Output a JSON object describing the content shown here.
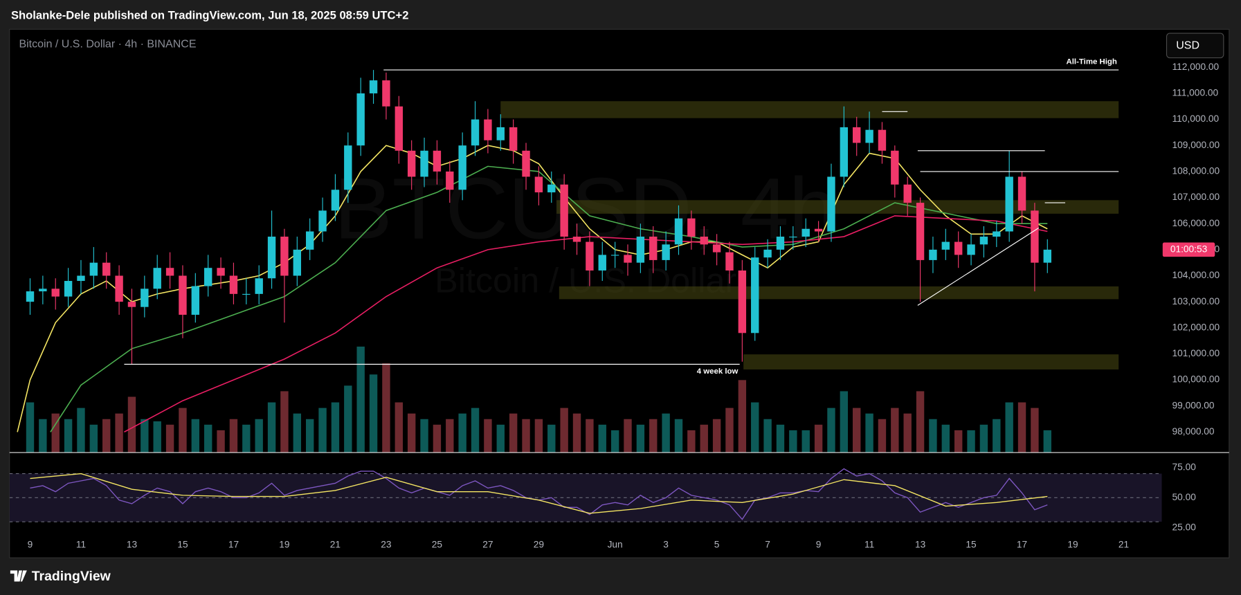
{
  "header": {
    "title": "Sholanke-Dele published on TradingView.com, Jun 18, 2025 08:59 UTC+2"
  },
  "footer": {
    "brand": "TradingView"
  },
  "chart_data": [
    {
      "type": "candlestick",
      "title": "Bitcoin / U.S. Dollar · 4h · BINANCE",
      "watermark": [
        "BTCUSD, 4h",
        "Bitcoin / U.S. Dollar"
      ],
      "currency": "USD",
      "countdown": "01:00:53",
      "xlim": [
        -0.81,
        44.5
      ],
      "ylim": [
        97210,
        113460
      ],
      "grid": false,
      "yticks": [
        {
          "value": 112000,
          "label": "112,000.00"
        },
        {
          "value": 111000,
          "label": "111,000.00"
        },
        {
          "value": 110000,
          "label": "110,000.00"
        },
        {
          "value": 109000,
          "label": "109,000.00"
        },
        {
          "value": 108000,
          "label": "108,000.00"
        },
        {
          "value": 107000,
          "label": "107,000.00"
        },
        {
          "value": 106000,
          "label": "106,000.00"
        },
        {
          "value": 105000,
          "label": "105,000.00"
        },
        {
          "value": 104000,
          "label": "104,000.00"
        },
        {
          "value": 103000,
          "label": "103,000.00"
        },
        {
          "value": 102000,
          "label": "102,000.00"
        },
        {
          "value": 101000,
          "label": "101,000.00"
        },
        {
          "value": 100000,
          "label": "100,000.00"
        },
        {
          "value": 99000,
          "label": "99,000.00"
        },
        {
          "value": 98000,
          "label": "98,000.00"
        }
      ],
      "up_color": "#22c3d3",
      "down_color": "#f0386b",
      "volume_colors": {
        "up": "#0d5a58",
        "down": "#6e2a30"
      },
      "volume_lim": [
        0,
        100
      ],
      "zone_color": "#4a4a12",
      "x": [
        0,
        0.5,
        1,
        1.5,
        2,
        2.5,
        3,
        3.5,
        4,
        4.5,
        5,
        5.5,
        6,
        6.5,
        7,
        7.5,
        8,
        8.5,
        9,
        9.5,
        10,
        10.5,
        11,
        11.5,
        12,
        12.5,
        13,
        13.5,
        14,
        14.5,
        15,
        15.5,
        16,
        16.5,
        17,
        17.5,
        18,
        18.5,
        19,
        19.5,
        20,
        20.5,
        21,
        21.5,
        22,
        22.5,
        23,
        23.5,
        24,
        24.5,
        25,
        25.5,
        26,
        26.5,
        27,
        27.5,
        28,
        28.5,
        29,
        29.5,
        30,
        30.5,
        31,
        31.5,
        32,
        32.5,
        33,
        33.5,
        34,
        34.5,
        35,
        35.5,
        36,
        36.5,
        37,
        37.5,
        38,
        38.5,
        39,
        39.5,
        40
      ],
      "open": [
        103000,
        103400,
        103500,
        103200,
        103800,
        104000,
        104500,
        104000,
        103000,
        102800,
        103500,
        104300,
        104000,
        102500,
        103600,
        104300,
        104000,
        103300,
        103300,
        103900,
        105500,
        104000,
        105000,
        105700,
        106500,
        107300,
        109000,
        111000,
        111500,
        110500,
        108800,
        107800,
        108800,
        108000,
        107300,
        109000,
        110000,
        109200,
        109700,
        108800,
        107800,
        107200,
        107500,
        105500,
        105300,
        104200,
        104800,
        104800,
        104500,
        105500,
        104600,
        105200,
        106200,
        105500,
        105200,
        104900,
        104200,
        101800,
        104700,
        105000,
        105500,
        105500,
        105800,
        105700,
        107800,
        109700,
        109100,
        109600,
        108800,
        107500,
        106800,
        104600,
        105000,
        105300,
        104800,
        105200,
        105500,
        105700,
        107800,
        106500,
        104500
      ],
      "high": [
        103900,
        104000,
        103900,
        104300,
        104600,
        105100,
        104900,
        104400,
        103500,
        104000,
        104800,
        104900,
        104400,
        104100,
        104800,
        104700,
        104500,
        103900,
        104400,
        106500,
        105800,
        105500,
        106200,
        107000,
        107900,
        109500,
        111600,
        111900,
        111800,
        110900,
        109200,
        109300,
        109200,
        108400,
        109500,
        110700,
        110400,
        110200,
        110000,
        109100,
        108200,
        108000,
        107900,
        106000,
        105700,
        105300,
        105300,
        105200,
        106000,
        105900,
        105700,
        106700,
        106500,
        105900,
        105600,
        105300,
        104600,
        105100,
        105400,
        105900,
        105900,
        106200,
        106100,
        108300,
        110500,
        110100,
        110300,
        109900,
        109000,
        107800,
        107000,
        105500,
        105800,
        105700,
        105600,
        105900,
        106100,
        108800,
        108000,
        106800,
        105400
      ],
      "low": [
        102500,
        102900,
        102700,
        102800,
        103300,
        103500,
        103500,
        102500,
        100600,
        102400,
        103100,
        103500,
        101600,
        102200,
        103200,
        103500,
        102900,
        102900,
        102900,
        103500,
        102200,
        103600,
        104600,
        105300,
        106100,
        106800,
        108600,
        110600,
        110000,
        108300,
        107300,
        107400,
        107500,
        106800,
        106900,
        108600,
        108700,
        108800,
        108300,
        107300,
        106700,
        106800,
        105000,
        104800,
        103600,
        103800,
        104300,
        104000,
        104100,
        104100,
        104200,
        104800,
        105000,
        104800,
        104400,
        103700,
        100700,
        101500,
        104300,
        104600,
        105000,
        105100,
        105300,
        105300,
        107400,
        108600,
        108700,
        108300,
        107000,
        106300,
        103000,
        104100,
        104600,
        104300,
        104400,
        104700,
        105100,
        105300,
        106000,
        103400,
        104100
      ],
      "close": [
        103400,
        103500,
        103200,
        103800,
        104000,
        104500,
        104000,
        103000,
        102800,
        103500,
        104300,
        104000,
        102500,
        103600,
        104300,
        104000,
        103300,
        103300,
        103900,
        105500,
        104000,
        105000,
        105700,
        106500,
        107300,
        109000,
        111000,
        111500,
        110500,
        108800,
        107800,
        108800,
        108000,
        107300,
        109000,
        110000,
        109200,
        109700,
        108800,
        107800,
        107200,
        107500,
        105500,
        105300,
        104200,
        104800,
        104800,
        104500,
        105500,
        104600,
        105200,
        106200,
        105500,
        105200,
        104900,
        104200,
        101800,
        104700,
        105000,
        105500,
        105500,
        105800,
        105700,
        107800,
        109700,
        109100,
        109600,
        108800,
        107500,
        106800,
        104600,
        105000,
        105300,
        104800,
        105200,
        105500,
        105700,
        107800,
        106500,
        104500,
        105000
      ],
      "volume": [
        45,
        30,
        35,
        30,
        40,
        25,
        30,
        35,
        50,
        30,
        28,
        25,
        40,
        30,
        25,
        20,
        30,
        25,
        30,
        45,
        55,
        35,
        30,
        40,
        45,
        60,
        95,
        70,
        80,
        45,
        35,
        30,
        25,
        30,
        35,
        40,
        30,
        25,
        35,
        30,
        30,
        25,
        40,
        35,
        30,
        25,
        20,
        30,
        25,
        30,
        35,
        30,
        20,
        25,
        30,
        40,
        65,
        45,
        30,
        25,
        20,
        20,
        25,
        40,
        55,
        40,
        35,
        30,
        40,
        35,
        55,
        30,
        25,
        20,
        20,
        25,
        30,
        45,
        45,
        40,
        20
      ],
      "series": [
        {
          "color": "#f5e663",
          "x": [
            -0.5,
            0,
            1,
            2,
            3,
            4,
            5,
            6,
            8,
            9,
            10,
            11,
            12,
            13,
            14,
            15,
            16,
            17,
            18,
            19,
            20,
            21,
            22,
            23,
            24,
            25,
            26,
            27,
            28,
            29,
            30,
            31,
            32,
            33,
            34,
            35,
            36,
            37,
            38,
            39,
            40
          ],
          "values": [
            98000,
            100000,
            102200,
            103300,
            103800,
            103000,
            103300,
            103500,
            103800,
            104000,
            104500,
            105200,
            106300,
            108000,
            109000,
            108700,
            108200,
            108500,
            109000,
            108800,
            108300,
            107000,
            105800,
            105000,
            104800,
            105000,
            105300,
            105300,
            104800,
            104300,
            105100,
            105300,
            107500,
            108700,
            108500,
            107300,
            106300,
            105600,
            105600,
            106300,
            105800
          ]
        },
        {
          "color": "#4caf50",
          "x": [
            0.8,
            2,
            4,
            6,
            8,
            10,
            12,
            14,
            16,
            18,
            20,
            22,
            24,
            26,
            28,
            30,
            32,
            34,
            36,
            38,
            40
          ],
          "values": [
            98000,
            99800,
            101200,
            101800,
            102500,
            103200,
            104500,
            106500,
            107200,
            108200,
            108000,
            106300,
            105800,
            105500,
            105100,
            105200,
            105800,
            106800,
            106400,
            106000,
            106000
          ]
        },
        {
          "color": "#e91e63",
          "x": [
            3.7,
            6,
            8,
            10,
            12,
            14,
            16,
            18,
            20,
            22,
            24,
            26,
            28,
            30,
            32,
            34,
            36,
            38,
            40
          ],
          "values": [
            98000,
            99200,
            100000,
            100800,
            101800,
            103200,
            104300,
            105000,
            105300,
            105500,
            105400,
            105300,
            105200,
            105300,
            105500,
            106300,
            106200,
            106100,
            105700
          ]
        }
      ],
      "levels": [
        {
          "label": "All-Time High",
          "y": 111900,
          "x": [
            13.9,
            42.8
          ]
        },
        {
          "label": "4 week low",
          "y": 100600,
          "x": [
            3.7,
            27.9
          ]
        },
        {
          "y": 108800,
          "x": [
            34.9,
            39.9
          ]
        },
        {
          "y": 108000,
          "x": [
            35,
            42.8
          ]
        },
        {
          "y": 110300,
          "x": [
            33.5,
            34.5
          ]
        },
        {
          "y": 106800,
          "x": [
            39.9,
            40.7
          ]
        }
      ],
      "zones": [
        {
          "y": [
            110050,
            110700
          ],
          "x": [
            18.5,
            42.8
          ]
        },
        {
          "y": [
            106380,
            106900
          ],
          "x": [
            20.7,
            42.8
          ]
        },
        {
          "y": [
            103100,
            103590
          ],
          "x": [
            20.8,
            42.8
          ]
        },
        {
          "y": [
            100400,
            100980
          ],
          "x": [
            28.05,
            42.8
          ]
        }
      ],
      "trendlines": [
        {
          "x": [
            34.9,
            39.66
          ],
          "y": [
            102860,
            105835
          ]
        }
      ]
    },
    {
      "type": "line",
      "xlim": [
        -0.81,
        44.5
      ],
      "ylim": [
        16.5,
        87.5
      ],
      "band": [
        30,
        70
      ],
      "band_color": "#191428",
      "levels": [
        70,
        50,
        30
      ],
      "yticks": [
        {
          "value": 75,
          "label": "75.00"
        },
        {
          "value": 50,
          "label": "50.00"
        },
        {
          "value": 25,
          "label": "25.00"
        }
      ],
      "xticks": [
        {
          "value": 0,
          "label": "9"
        },
        {
          "value": 2,
          "label": "11"
        },
        {
          "value": 4,
          "label": "13"
        },
        {
          "value": 6,
          "label": "15"
        },
        {
          "value": 8,
          "label": "17"
        },
        {
          "value": 10,
          "label": "19"
        },
        {
          "value": 12,
          "label": "21"
        },
        {
          "value": 14,
          "label": "23"
        },
        {
          "value": 16,
          "label": "25"
        },
        {
          "value": 18,
          "label": "27"
        },
        {
          "value": 20,
          "label": "29"
        },
        {
          "value": 23,
          "label": "Jun"
        },
        {
          "value": 25,
          "label": "3"
        },
        {
          "value": 27,
          "label": "5"
        },
        {
          "value": 29,
          "label": "7"
        },
        {
          "value": 31,
          "label": "9"
        },
        {
          "value": 33,
          "label": "11"
        },
        {
          "value": 35,
          "label": "13"
        },
        {
          "value": 37,
          "label": "15"
        },
        {
          "value": 39,
          "label": "17"
        },
        {
          "value": 41,
          "label": "19"
        },
        {
          "value": 43,
          "label": "21"
        }
      ],
      "series": [
        {
          "color": "#7e57c2",
          "x": [
            0,
            0.5,
            1,
            1.5,
            2,
            2.5,
            3,
            3.5,
            4,
            4.5,
            5,
            5.5,
            6,
            6.5,
            7,
            7.5,
            8,
            8.5,
            9,
            9.5,
            10,
            10.5,
            11,
            11.5,
            12,
            12.5,
            13,
            13.5,
            14,
            14.5,
            15,
            15.5,
            16,
            16.5,
            17,
            17.5,
            18,
            18.5,
            19,
            19.5,
            20,
            20.5,
            21,
            21.5,
            22,
            22.5,
            23,
            23.5,
            24,
            24.5,
            25,
            25.5,
            26,
            26.5,
            27,
            27.5,
            28,
            28.5,
            29,
            29.5,
            30,
            30.5,
            31,
            31.5,
            32,
            32.5,
            33,
            33.5,
            34,
            34.5,
            35,
            35.5,
            36,
            36.5,
            37,
            37.5,
            38,
            38.5,
            39,
            39.5,
            40
          ],
          "values": [
            58,
            60,
            55,
            62,
            64,
            66,
            60,
            48,
            45,
            52,
            58,
            55,
            45,
            55,
            58,
            55,
            50,
            50,
            54,
            62,
            52,
            56,
            58,
            60,
            62,
            68,
            72,
            72,
            66,
            58,
            54,
            58,
            55,
            52,
            60,
            64,
            58,
            60,
            56,
            50,
            48,
            50,
            42,
            42,
            36,
            44,
            46,
            44,
            52,
            46,
            50,
            58,
            52,
            50,
            48,
            44,
            32,
            48,
            50,
            54,
            54,
            56,
            55,
            66,
            74,
            68,
            70,
            64,
            54,
            50,
            38,
            42,
            46,
            42,
            46,
            50,
            52,
            66,
            54,
            40,
            44
          ]
        },
        {
          "color": "#f5e663",
          "x": [
            0,
            2,
            4,
            6,
            8,
            10,
            12,
            14,
            16,
            18,
            20,
            22,
            24,
            26,
            28,
            30,
            32,
            34,
            36,
            38,
            40
          ],
          "values": [
            66,
            70,
            57,
            52,
            51,
            51,
            56,
            67,
            55,
            55,
            48,
            37,
            41,
            48,
            46,
            53,
            65,
            60,
            43,
            46,
            51
          ]
        }
      ]
    }
  ]
}
